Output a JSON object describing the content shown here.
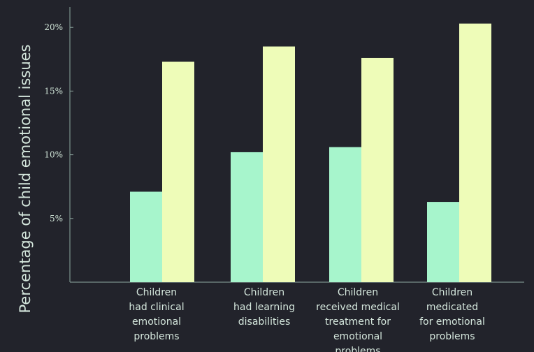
{
  "chart_data": {
    "type": "bar",
    "title": "",
    "xlabel": "",
    "ylabel": "Percentage of child emotional issues",
    "categories": [
      [
        "Children",
        "had clinical",
        "emotional",
        "problems"
      ],
      [
        "Children",
        "had learning",
        "disabilities"
      ],
      [
        "Children",
        "received medical",
        "treatment for",
        "emotional",
        "problems"
      ],
      [
        "Children",
        "medicated",
        "for emotional",
        "problems"
      ]
    ],
    "series": [
      {
        "values": [
          7.1,
          10.2,
          10.6,
          6.3
        ],
        "color": "#a7f5cc"
      },
      {
        "values": [
          17.3,
          18.5,
          17.6,
          20.3
        ],
        "color": "#eefcb8"
      }
    ],
    "yticks": [
      5,
      10,
      15,
      20
    ],
    "ytick_labels": [
      "5%",
      "10%",
      "15%",
      "20%"
    ],
    "ylim": [
      0,
      21.6
    ],
    "grid": false,
    "legend": "none"
  },
  "colors": {
    "background": "#22232b",
    "axis": "#8fa8a0",
    "text": "#d4e6dc"
  }
}
